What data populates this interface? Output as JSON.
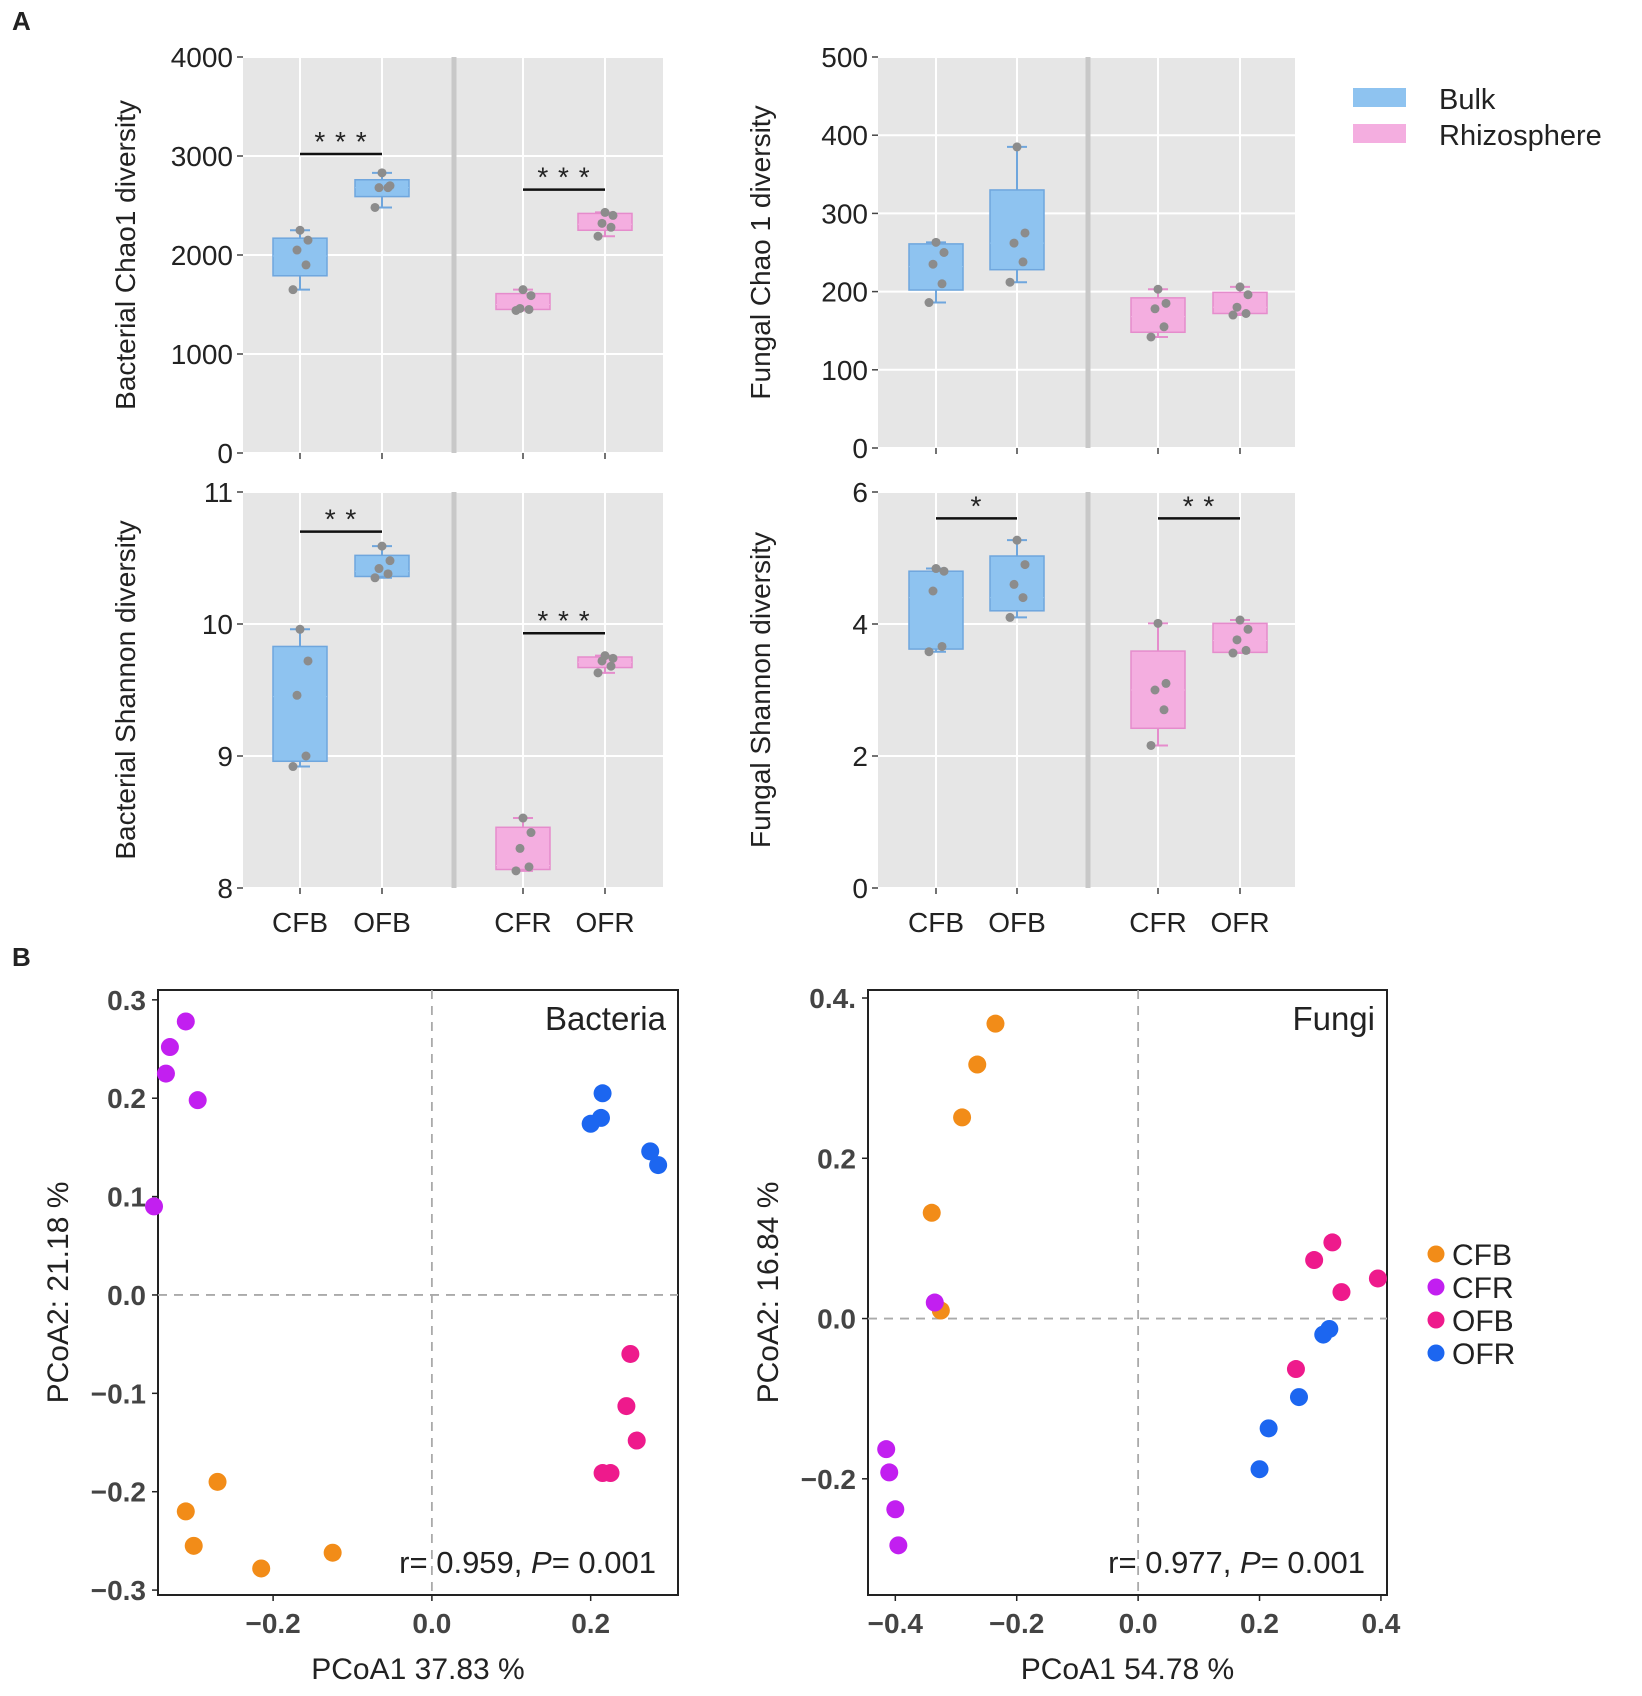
{
  "panel_labels": {
    "a": "A",
    "b": "B"
  },
  "legend_box": {
    "items": [
      {
        "name": "Bulk",
        "color": "#8ec3f0"
      },
      {
        "name": "Rhizosphere",
        "color": "#f4aee0"
      }
    ]
  },
  "legend_scatter": {
    "items": [
      {
        "name": "CFB",
        "color": "#f28c18"
      },
      {
        "name": "CFR",
        "color": "#c21ff0"
      },
      {
        "name": "OFB",
        "color": "#ee1a8c"
      },
      {
        "name": "OFR",
        "color": "#1c66f0"
      }
    ]
  },
  "chart_data": [
    {
      "type": "box",
      "id": "bac-chao1",
      "ylabel": "Bacterial Chao1 diversity",
      "ylim": [
        0,
        4000
      ],
      "yticks": [
        0,
        1000,
        2000,
        3000,
        4000
      ],
      "categories": [
        "CFB",
        "OFB",
        "CFR",
        "OFR"
      ],
      "show_xticklabels": false,
      "boxes": [
        {
          "cat": "CFB",
          "group": "Bulk",
          "whisker_low": 1650,
          "q1": 1790,
          "median": 1990,
          "q3": 2170,
          "whisker_high": 2250,
          "points": [
            1650,
            1900,
            2050,
            2150,
            2250
          ]
        },
        {
          "cat": "OFB",
          "group": "Bulk",
          "whisker_low": 2480,
          "q1": 2590,
          "median": 2680,
          "q3": 2760,
          "whisker_high": 2830,
          "points": [
            2480,
            2680,
            2680,
            2700,
            2830
          ]
        },
        {
          "cat": "CFR",
          "group": "Rhizosphere",
          "whisker_low": 1440,
          "q1": 1450,
          "median": 1500,
          "q3": 1610,
          "whisker_high": 1650,
          "points": [
            1440,
            1450,
            1460,
            1590,
            1650
          ]
        },
        {
          "cat": "OFR",
          "group": "Rhizosphere",
          "whisker_low": 2190,
          "q1": 2250,
          "median": 2310,
          "q3": 2420,
          "whisker_high": 2430,
          "points": [
            2190,
            2280,
            2320,
            2400,
            2430
          ]
        }
      ],
      "significance": [
        {
          "from": "CFB",
          "to": "OFB",
          "y": 3020,
          "label": "***"
        },
        {
          "from": "CFR",
          "to": "OFR",
          "y": 2660,
          "label": "***"
        }
      ]
    },
    {
      "type": "box",
      "id": "fun-chao1",
      "ylabel": "Fungal  Chao 1 diversity",
      "ylim": [
        0,
        500
      ],
      "yticks": [
        0,
        100,
        200,
        300,
        400,
        500
      ],
      "categories": [
        "CFB",
        "OFB",
        "CFR",
        "OFR"
      ],
      "show_xticklabels": false,
      "boxes": [
        {
          "cat": "CFB",
          "group": "Bulk",
          "whisker_low": 186,
          "q1": 202,
          "median": 232,
          "q3": 261,
          "whisker_high": 263,
          "points": [
            186,
            210,
            235,
            250,
            263
          ]
        },
        {
          "cat": "OFB",
          "group": "Bulk",
          "whisker_low": 212,
          "q1": 228,
          "median": 262,
          "q3": 330,
          "whisker_high": 385,
          "points": [
            212,
            238,
            262,
            275,
            385
          ]
        },
        {
          "cat": "CFR",
          "group": "Rhizosphere",
          "whisker_low": 142,
          "q1": 148,
          "median": 168,
          "q3": 192,
          "whisker_high": 203,
          "points": [
            142,
            155,
            178,
            185,
            203
          ]
        },
        {
          "cat": "OFR",
          "group": "Rhizosphere",
          "whisker_low": 170,
          "q1": 172,
          "median": 180,
          "q3": 199,
          "whisker_high": 206,
          "points": [
            170,
            172,
            180,
            196,
            206
          ]
        }
      ],
      "significance": []
    },
    {
      "type": "box",
      "id": "bac-shannon",
      "ylabel": "Bacterial  Shannon diversity",
      "ylim": [
        8,
        11
      ],
      "yticks": [
        8,
        9,
        10,
        11
      ],
      "categories": [
        "CFB",
        "OFB",
        "CFR",
        "OFR"
      ],
      "show_xticklabels": true,
      "boxes": [
        {
          "cat": "CFB",
          "group": "Bulk",
          "whisker_low": 8.92,
          "q1": 8.96,
          "median": 9.45,
          "q3": 9.83,
          "whisker_high": 9.96,
          "points": [
            8.92,
            9.0,
            9.46,
            9.72,
            9.96
          ]
        },
        {
          "cat": "OFB",
          "group": "Bulk",
          "whisker_low": 10.35,
          "q1": 10.36,
          "median": 10.4,
          "q3": 10.52,
          "whisker_high": 10.59,
          "points": [
            10.35,
            10.38,
            10.42,
            10.48,
            10.59
          ]
        },
        {
          "cat": "CFR",
          "group": "Rhizosphere",
          "whisker_low": 8.13,
          "q1": 8.14,
          "median": 8.17,
          "q3": 8.46,
          "whisker_high": 8.53,
          "points": [
            8.13,
            8.16,
            8.3,
            8.42,
            8.53
          ]
        },
        {
          "cat": "OFR",
          "group": "Rhizosphere",
          "whisker_low": 9.63,
          "q1": 9.67,
          "median": 9.71,
          "q3": 9.75,
          "whisker_high": 9.76,
          "points": [
            9.63,
            9.68,
            9.72,
            9.74,
            9.76
          ]
        }
      ],
      "significance": [
        {
          "from": "CFB",
          "to": "OFB",
          "y": 10.7,
          "label": "**"
        },
        {
          "from": "CFR",
          "to": "OFR",
          "y": 9.93,
          "label": "***"
        }
      ]
    },
    {
      "type": "box",
      "id": "fun-shannon",
      "ylabel": "Fungal  Shannon diversity",
      "ylim": [
        0,
        6
      ],
      "yticks": [
        0,
        2,
        4,
        6
      ],
      "categories": [
        "CFB",
        "OFB",
        "CFR",
        "OFR"
      ],
      "show_xticklabels": true,
      "boxes": [
        {
          "cat": "CFB",
          "group": "Bulk",
          "whisker_low": 3.58,
          "q1": 3.62,
          "median": 4.4,
          "q3": 4.8,
          "whisker_high": 4.84,
          "points": [
            3.58,
            3.66,
            4.5,
            4.8,
            4.84
          ]
        },
        {
          "cat": "OFB",
          "group": "Bulk",
          "whisker_low": 4.1,
          "q1": 4.2,
          "median": 4.4,
          "q3": 5.03,
          "whisker_high": 5.27,
          "points": [
            4.1,
            4.4,
            4.6,
            4.9,
            5.27
          ]
        },
        {
          "cat": "CFR",
          "group": "Rhizosphere",
          "whisker_low": 2.16,
          "q1": 2.42,
          "median": 3.0,
          "q3": 3.59,
          "whisker_high": 4.01,
          "points": [
            2.16,
            2.7,
            3.0,
            3.1,
            4.01
          ]
        },
        {
          "cat": "OFR",
          "group": "Rhizosphere",
          "whisker_low": 3.56,
          "q1": 3.57,
          "median": 3.75,
          "q3": 4.01,
          "whisker_high": 4.06,
          "points": [
            3.56,
            3.6,
            3.76,
            3.92,
            4.06
          ]
        }
      ],
      "significance": [
        {
          "from": "CFB",
          "to": "OFB",
          "y": 5.6,
          "label": "*"
        },
        {
          "from": "CFR",
          "to": "OFR",
          "y": 5.6,
          "label": "**"
        }
      ]
    },
    {
      "type": "scatter",
      "id": "pcoa-bacteria",
      "title": "Bacteria",
      "xlabel": "PCoA1  37.83 %",
      "ylabel": "PCoA2:  21.18 %",
      "xlim": [
        -0.345,
        0.31
      ],
      "ylim": [
        -0.305,
        0.31
      ],
      "xticks": [
        -0.2,
        0.0,
        0.2
      ],
      "xticklabels": [
        "−0.2",
        "0.0",
        "0.2"
      ],
      "yticks": [
        -0.3,
        -0.2,
        -0.1,
        0.0,
        0.1,
        0.2,
        0.3
      ],
      "yticklabels": [
        "−0.3",
        "−0.2",
        "−0.1",
        "0.0",
        "0.1",
        "0.2",
        "0.3"
      ],
      "annotation": {
        "prefix": "r= 0.959, ",
        "italic": "P",
        "suffix": "= 0.001"
      },
      "series": [
        {
          "name": "CFB",
          "points": [
            [
              -0.27,
              -0.19
            ],
            [
              -0.31,
              -0.22
            ],
            [
              -0.3,
              -0.255
            ],
            [
              -0.215,
              -0.278
            ],
            [
              -0.125,
              -0.262
            ]
          ]
        },
        {
          "name": "CFR",
          "points": [
            [
              -0.31,
              0.278
            ],
            [
              -0.33,
              0.252
            ],
            [
              -0.335,
              0.225
            ],
            [
              -0.295,
              0.198
            ],
            [
              -0.35,
              0.09
            ]
          ]
        },
        {
          "name": "OFB",
          "points": [
            [
              0.25,
              -0.06
            ],
            [
              0.245,
              -0.113
            ],
            [
              0.258,
              -0.148
            ],
            [
              0.215,
              -0.181
            ],
            [
              0.225,
              -0.181
            ]
          ]
        },
        {
          "name": "OFR",
          "points": [
            [
              0.215,
              0.205
            ],
            [
              0.213,
              0.18
            ],
            [
              0.2,
              0.174
            ],
            [
              0.275,
              0.146
            ],
            [
              0.285,
              0.132
            ]
          ]
        }
      ]
    },
    {
      "type": "scatter",
      "id": "pcoa-fungi",
      "title": "Fungi",
      "xlabel": "PCoA1  54.78 %",
      "ylabel": "PCoA2:  16.84 %",
      "xlim": [
        -0.445,
        0.41
      ],
      "ylim": [
        -0.345,
        0.41
      ],
      "xticks": [
        -0.4,
        -0.2,
        0.0,
        0.2,
        0.4
      ],
      "xticklabels": [
        "−0.4",
        "−0.2",
        "0.0",
        "0.2",
        "0.4"
      ],
      "yticks": [
        -0.2,
        0.0,
        0.2,
        0.4
      ],
      "yticklabels": [
        "−0.2",
        "0.0",
        "0.2",
        "0.4."
      ],
      "annotation": {
        "prefix": "r= 0.977, ",
        "italic": "P",
        "suffix": "= 0.001"
      },
      "series": [
        {
          "name": "CFB",
          "points": [
            [
              -0.235,
              0.368
            ],
            [
              -0.265,
              0.317
            ],
            [
              -0.29,
              0.251
            ],
            [
              -0.34,
              0.132
            ],
            [
              -0.325,
              0.01
            ]
          ]
        },
        {
          "name": "CFR",
          "points": [
            [
              -0.335,
              0.02
            ],
            [
              -0.415,
              -0.163
            ],
            [
              -0.41,
              -0.192
            ],
            [
              -0.4,
              -0.238
            ],
            [
              -0.395,
              -0.283
            ]
          ]
        },
        {
          "name": "OFB",
          "points": [
            [
              0.32,
              0.095
            ],
            [
              0.29,
              0.073
            ],
            [
              0.395,
              0.05
            ],
            [
              0.335,
              0.033
            ],
            [
              0.26,
              -0.063
            ]
          ]
        },
        {
          "name": "OFR",
          "points": [
            [
              0.315,
              -0.013
            ],
            [
              0.305,
              -0.02
            ],
            [
              0.265,
              -0.098
            ],
            [
              0.215,
              -0.137
            ],
            [
              0.2,
              -0.188
            ]
          ]
        }
      ]
    }
  ]
}
